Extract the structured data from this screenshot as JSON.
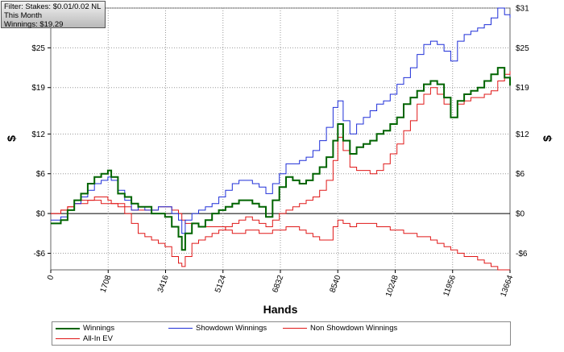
{
  "info": {
    "filter": "Filter: Stakes: $0.01/0.02 NL",
    "period": "This Month",
    "winnings": "Winnings: $19.29"
  },
  "legend": {
    "winnings": "Winnings",
    "showdown": "Showdown Winnings",
    "nonshowdown": "Non Showdown Winnings",
    "allin": "All-In EV"
  },
  "colors": {
    "winnings": "#006400",
    "showdown": "#1f2fd8",
    "nonshowdown": "#e01818",
    "allin": "#e01818"
  },
  "chart_data": {
    "type": "line",
    "xlabel": "Hands",
    "ylabel": "$",
    "xlim": [
      0,
      13664
    ],
    "ylim": [
      -8.5,
      31
    ],
    "x_ticks": [
      0,
      1708,
      3416,
      5124,
      6832,
      8540,
      10248,
      11956,
      13664
    ],
    "y_ticks": [
      {
        "v": 31,
        "label": "$31"
      },
      {
        "v": 25,
        "label": "$25"
      },
      {
        "v": 19,
        "label": "$19"
      },
      {
        "v": 12,
        "label": "$12"
      },
      {
        "v": 6,
        "label": "$6"
      },
      {
        "v": 0,
        "label": "$0"
      },
      {
        "v": -6,
        "label": "-$6"
      }
    ],
    "grid": true,
    "legend_position": "bottom",
    "series": [
      {
        "name": "Winnings",
        "key": "winnings",
        "x": [
          0,
          300,
          500,
          700,
          900,
          1100,
          1300,
          1500,
          1700,
          1800,
          2000,
          2200,
          2400,
          2600,
          2800,
          3000,
          3200,
          3400,
          3600,
          3800,
          3900,
          4000,
          4200,
          4400,
          4600,
          4800,
          5000,
          5200,
          5400,
          5600,
          5800,
          6000,
          6200,
          6400,
          6600,
          6800,
          7000,
          7200,
          7400,
          7600,
          7800,
          8000,
          8200,
          8400,
          8540,
          8700,
          8900,
          9100,
          9300,
          9500,
          9700,
          9900,
          10100,
          10300,
          10500,
          10700,
          10900,
          11100,
          11300,
          11500,
          11700,
          11900,
          12100,
          12300,
          12500,
          12700,
          12900,
          13100,
          13300,
          13500,
          13664
        ],
        "y": [
          -1.5,
          -1,
          0.5,
          2,
          3,
          4.5,
          5.5,
          6,
          6.5,
          5.5,
          3,
          2.5,
          1.5,
          1,
          1,
          0,
          0,
          -0.5,
          -2,
          -3.5,
          -5.5,
          -3,
          -1.5,
          -2,
          -1,
          0,
          0.5,
          1,
          1.5,
          2,
          2,
          1.5,
          1,
          -0.5,
          2,
          4,
          5.5,
          5,
          4.5,
          5,
          6,
          7,
          8.5,
          11,
          13.5,
          11,
          9,
          10,
          10.5,
          11,
          12,
          12.5,
          13.5,
          14.5,
          16.5,
          17.5,
          18.5,
          19.5,
          20,
          19.5,
          17.5,
          14.5,
          17,
          18,
          18.5,
          19,
          20,
          21,
          22,
          20.5,
          19.3
        ]
      },
      {
        "name": "Showdown Winnings",
        "key": "showdown",
        "x": [
          0,
          300,
          500,
          700,
          900,
          1100,
          1300,
          1500,
          1700,
          1800,
          2000,
          2200,
          2400,
          2600,
          2800,
          3000,
          3200,
          3400,
          3600,
          3800,
          3900,
          4000,
          4200,
          4400,
          4600,
          4800,
          5000,
          5200,
          5400,
          5600,
          5800,
          6000,
          6200,
          6400,
          6600,
          6800,
          7000,
          7200,
          7400,
          7600,
          7800,
          8000,
          8200,
          8400,
          8540,
          8700,
          8900,
          9100,
          9300,
          9500,
          9700,
          9900,
          10100,
          10300,
          10500,
          10700,
          10900,
          11100,
          11300,
          11500,
          11700,
          11900,
          12100,
          12300,
          12500,
          12700,
          12900,
          13100,
          13300,
          13500,
          13664
        ],
        "y": [
          -1,
          -0.5,
          0.5,
          1.5,
          2.5,
          3.5,
          4.5,
          5,
          5.5,
          5,
          3.5,
          2,
          0.5,
          1,
          0.5,
          0.5,
          1,
          1,
          0,
          -1,
          -3,
          -1,
          0,
          0.5,
          1,
          1.5,
          2.5,
          3.5,
          4.5,
          5,
          5,
          4.5,
          4,
          3,
          4.5,
          6,
          7.5,
          7.5,
          8,
          8.5,
          9.5,
          11,
          13,
          16,
          17,
          14,
          12,
          13.5,
          14.5,
          15.5,
          16.5,
          17,
          18,
          19.5,
          20.5,
          22,
          24,
          25.5,
          26,
          25.5,
          24.5,
          23,
          26,
          27,
          27.5,
          28,
          28.5,
          29.5,
          31,
          30,
          29.5
        ]
      },
      {
        "name": "Non Showdown Winnings",
        "key": "nonshowdown",
        "x": [
          0,
          300,
          500,
          700,
          900,
          1100,
          1300,
          1500,
          1700,
          1800,
          2000,
          2200,
          2400,
          2600,
          2800,
          3000,
          3200,
          3400,
          3600,
          3800,
          3900,
          4000,
          4200,
          4400,
          4600,
          4800,
          5000,
          5200,
          5400,
          5600,
          5800,
          6000,
          6200,
          6400,
          6600,
          6800,
          7000,
          7200,
          7400,
          7600,
          7800,
          8000,
          8200,
          8400,
          8540,
          8700,
          8900,
          9100,
          9300,
          9500,
          9700,
          9900,
          10100,
          10300,
          10500,
          10700,
          10900,
          11100,
          11300,
          11500,
          11700,
          11900,
          12100,
          12300,
          12500,
          12700,
          12900,
          13100,
          13300,
          13500,
          13664
        ],
        "y": [
          0,
          0.5,
          1,
          1.5,
          1.5,
          2,
          2,
          1.5,
          1.5,
          1.5,
          1,
          1,
          0.5,
          0.5,
          0.5,
          0.5,
          1,
          1,
          0.5,
          0,
          -1,
          -1.5,
          -1.5,
          -2,
          -2,
          -2,
          -2,
          -2.5,
          -3,
          -3,
          -2.5,
          -2.5,
          -3,
          -3,
          -2.5,
          -2.5,
          -2,
          -2,
          -2.5,
          -3,
          -3.5,
          -4,
          -4,
          -2,
          -1,
          -1.5,
          -2,
          -1.5,
          -1.5,
          -1.5,
          -2,
          -2,
          -2.5,
          -2.5,
          -3,
          -3,
          -3.5,
          -3.5,
          -4,
          -4.5,
          -5,
          -5.5,
          -6,
          -6.5,
          -6.5,
          -7,
          -7.5,
          -8,
          -8.5,
          -8.5,
          -8.5
        ]
      },
      {
        "name": "All-In EV",
        "key": "allin",
        "x": [
          0,
          300,
          500,
          700,
          900,
          1100,
          1300,
          1500,
          1700,
          1800,
          2000,
          2200,
          2400,
          2600,
          2800,
          3000,
          3200,
          3400,
          3600,
          3800,
          3900,
          4000,
          4200,
          4400,
          4600,
          4800,
          5000,
          5200,
          5400,
          5600,
          5800,
          6000,
          6200,
          6400,
          6600,
          6800,
          7000,
          7200,
          7400,
          7600,
          7800,
          8000,
          8200,
          8400,
          8540,
          8700,
          8900,
          9100,
          9300,
          9500,
          9700,
          9900,
          10100,
          10300,
          10500,
          10700,
          10900,
          11100,
          11300,
          11500,
          11700,
          11900,
          12100,
          12300,
          12500,
          12700,
          12900,
          13100,
          13300,
          13500,
          13664
        ],
        "y": [
          0,
          0.5,
          1,
          1.5,
          2,
          2,
          2.5,
          2.5,
          2,
          1.5,
          1.5,
          0,
          -1.5,
          -3,
          -3.5,
          -4,
          -4.5,
          -5,
          -6.5,
          -7.5,
          -8,
          -6.5,
          -4.5,
          -4,
          -3.5,
          -3,
          -2.5,
          -2,
          -1.5,
          -1,
          -0.5,
          -1,
          -1.5,
          -2,
          -1,
          0,
          0.5,
          1,
          1.5,
          2,
          2.5,
          3.5,
          5,
          8,
          11.5,
          9.5,
          7,
          6.5,
          6.5,
          6,
          6.5,
          7.5,
          9,
          10.5,
          12.5,
          14,
          16.5,
          18,
          19,
          18,
          16.5,
          14.5,
          16.5,
          17,
          17.5,
          17.5,
          18,
          18.5,
          20,
          21,
          21.5
        ]
      }
    ]
  }
}
